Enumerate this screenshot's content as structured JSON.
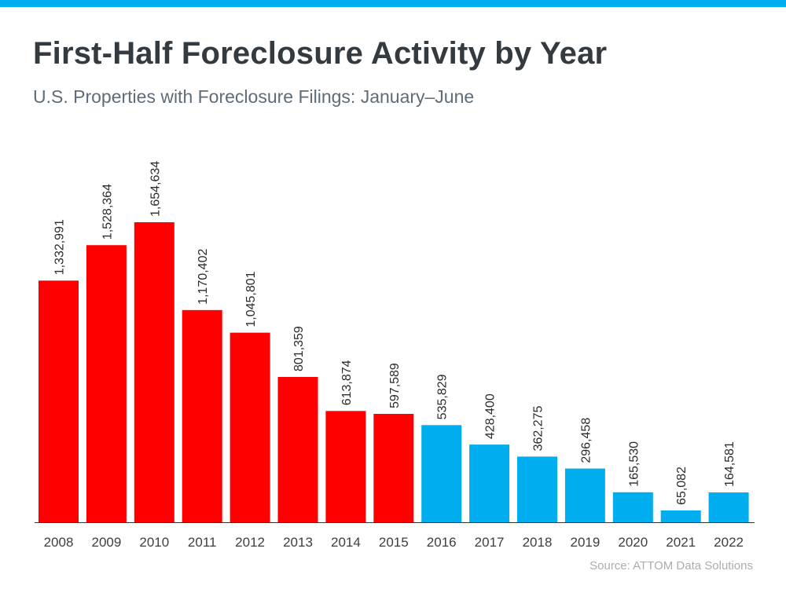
{
  "header": {
    "title": "First-Half Foreclosure Activity by Year",
    "subtitle": "U.S. Properties with Foreclosure Filings: January–June"
  },
  "footer": {
    "source": "Source: ATTOM Data Solutions"
  },
  "colors": {
    "accent_bar": "#00aeef",
    "highlight_red": "#ff0000",
    "recent_blue": "#00aeef"
  },
  "chart_data": {
    "type": "bar",
    "categories": [
      "2008",
      "2009",
      "2010",
      "2011",
      "2012",
      "2013",
      "2014",
      "2015",
      "2016",
      "2017",
      "2018",
      "2019",
      "2020",
      "2021",
      "2022"
    ],
    "values": [
      1332991,
      1528364,
      1654634,
      1170402,
      1045801,
      801359,
      613874,
      597589,
      535829,
      428400,
      362275,
      296458,
      165530,
      65082,
      164581
    ],
    "value_labels": [
      "1,332,991",
      "1,528,364",
      "1,654,634",
      "1,170,402",
      "1,045,801",
      "801,359",
      "613,874",
      "597,589",
      "535,829",
      "428,400",
      "362,275",
      "296,458",
      "165,530",
      "65,082",
      "164,581"
    ],
    "bar_colors": [
      "#ff0000",
      "#ff0000",
      "#ff0000",
      "#ff0000",
      "#ff0000",
      "#ff0000",
      "#ff0000",
      "#ff0000",
      "#00aeef",
      "#00aeef",
      "#00aeef",
      "#00aeef",
      "#00aeef",
      "#00aeef",
      "#00aeef"
    ],
    "ylim": [
      0,
      1700000
    ],
    "grid": false,
    "legend": "none",
    "xlabel": "",
    "ylabel": ""
  }
}
